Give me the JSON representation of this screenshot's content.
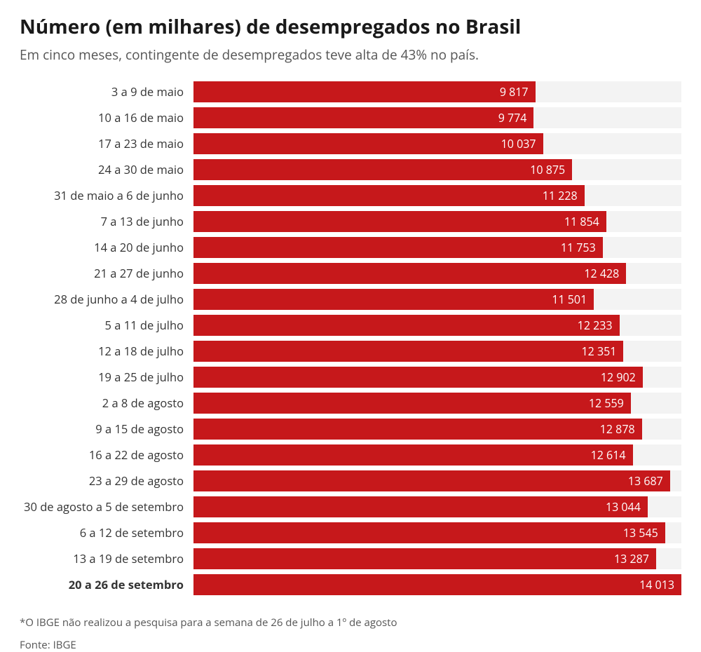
{
  "chart": {
    "type": "bar",
    "title": "Número (em milhares) de desempregados no Brasil",
    "subtitle": "Em cinco meses, contingente de desempregados teve alta de 43% no país.",
    "footnote": "*O IBGE não realizou a pesquisa para a semana de 26 de julho a 1º de agosto",
    "source": "Fonte: IBGE",
    "bar_color": "#c6181b",
    "track_color": "#f3f3f3",
    "title_color": "#1a1a1a",
    "subtitle_color": "#555555",
    "label_color": "#333333",
    "value_color": "#ffffff",
    "background_color": "#ffffff",
    "title_fontsize": 28,
    "subtitle_fontsize": 19,
    "label_fontsize": 16.5,
    "value_fontsize": 16,
    "xmax": 14013,
    "rows": [
      {
        "label": "3 a 9 de maio",
        "value": 9817,
        "display": "9 817",
        "bold": false
      },
      {
        "label": "10 a 16 de maio",
        "value": 9774,
        "display": "9 774",
        "bold": false
      },
      {
        "label": "17 a 23 de maio",
        "value": 10037,
        "display": "10 037",
        "bold": false
      },
      {
        "label": "24 a 30 de maio",
        "value": 10875,
        "display": "10 875",
        "bold": false
      },
      {
        "label": "31 de maio a 6 de junho",
        "value": 11228,
        "display": "11 228",
        "bold": false
      },
      {
        "label": "7 a 13 de junho",
        "value": 11854,
        "display": "11 854",
        "bold": false
      },
      {
        "label": "14 a 20 de junho",
        "value": 11753,
        "display": "11 753",
        "bold": false
      },
      {
        "label": "21 a 27 de junho",
        "value": 12428,
        "display": "12 428",
        "bold": false
      },
      {
        "label": "28 de junho a 4 de julho",
        "value": 11501,
        "display": "11 501",
        "bold": false
      },
      {
        "label": "5 a 11 de julho",
        "value": 12233,
        "display": "12 233",
        "bold": false
      },
      {
        "label": "12 a 18 de julho",
        "value": 12351,
        "display": "12 351",
        "bold": false
      },
      {
        "label": "19 a 25 de julho",
        "value": 12902,
        "display": "12 902",
        "bold": false
      },
      {
        "label": "2 a 8 de agosto",
        "value": 12559,
        "display": "12 559",
        "bold": false
      },
      {
        "label": "9 a 15 de agosto",
        "value": 12878,
        "display": "12 878",
        "bold": false
      },
      {
        "label": "16 a 22 de agosto",
        "value": 12614,
        "display": "12 614",
        "bold": false
      },
      {
        "label": "23 a 29 de agosto",
        "value": 13687,
        "display": "13 687",
        "bold": false
      },
      {
        "label": "30 de agosto a 5 de setembro",
        "value": 13044,
        "display": "13 044",
        "bold": false
      },
      {
        "label": "6 a 12 de setembro",
        "value": 13545,
        "display": "13 545",
        "bold": false
      },
      {
        "label": "13 a 19 de setembro",
        "value": 13287,
        "display": "13 287",
        "bold": false
      },
      {
        "label": "20 a 26 de setembro",
        "value": 14013,
        "display": "14 013",
        "bold": true
      }
    ]
  }
}
